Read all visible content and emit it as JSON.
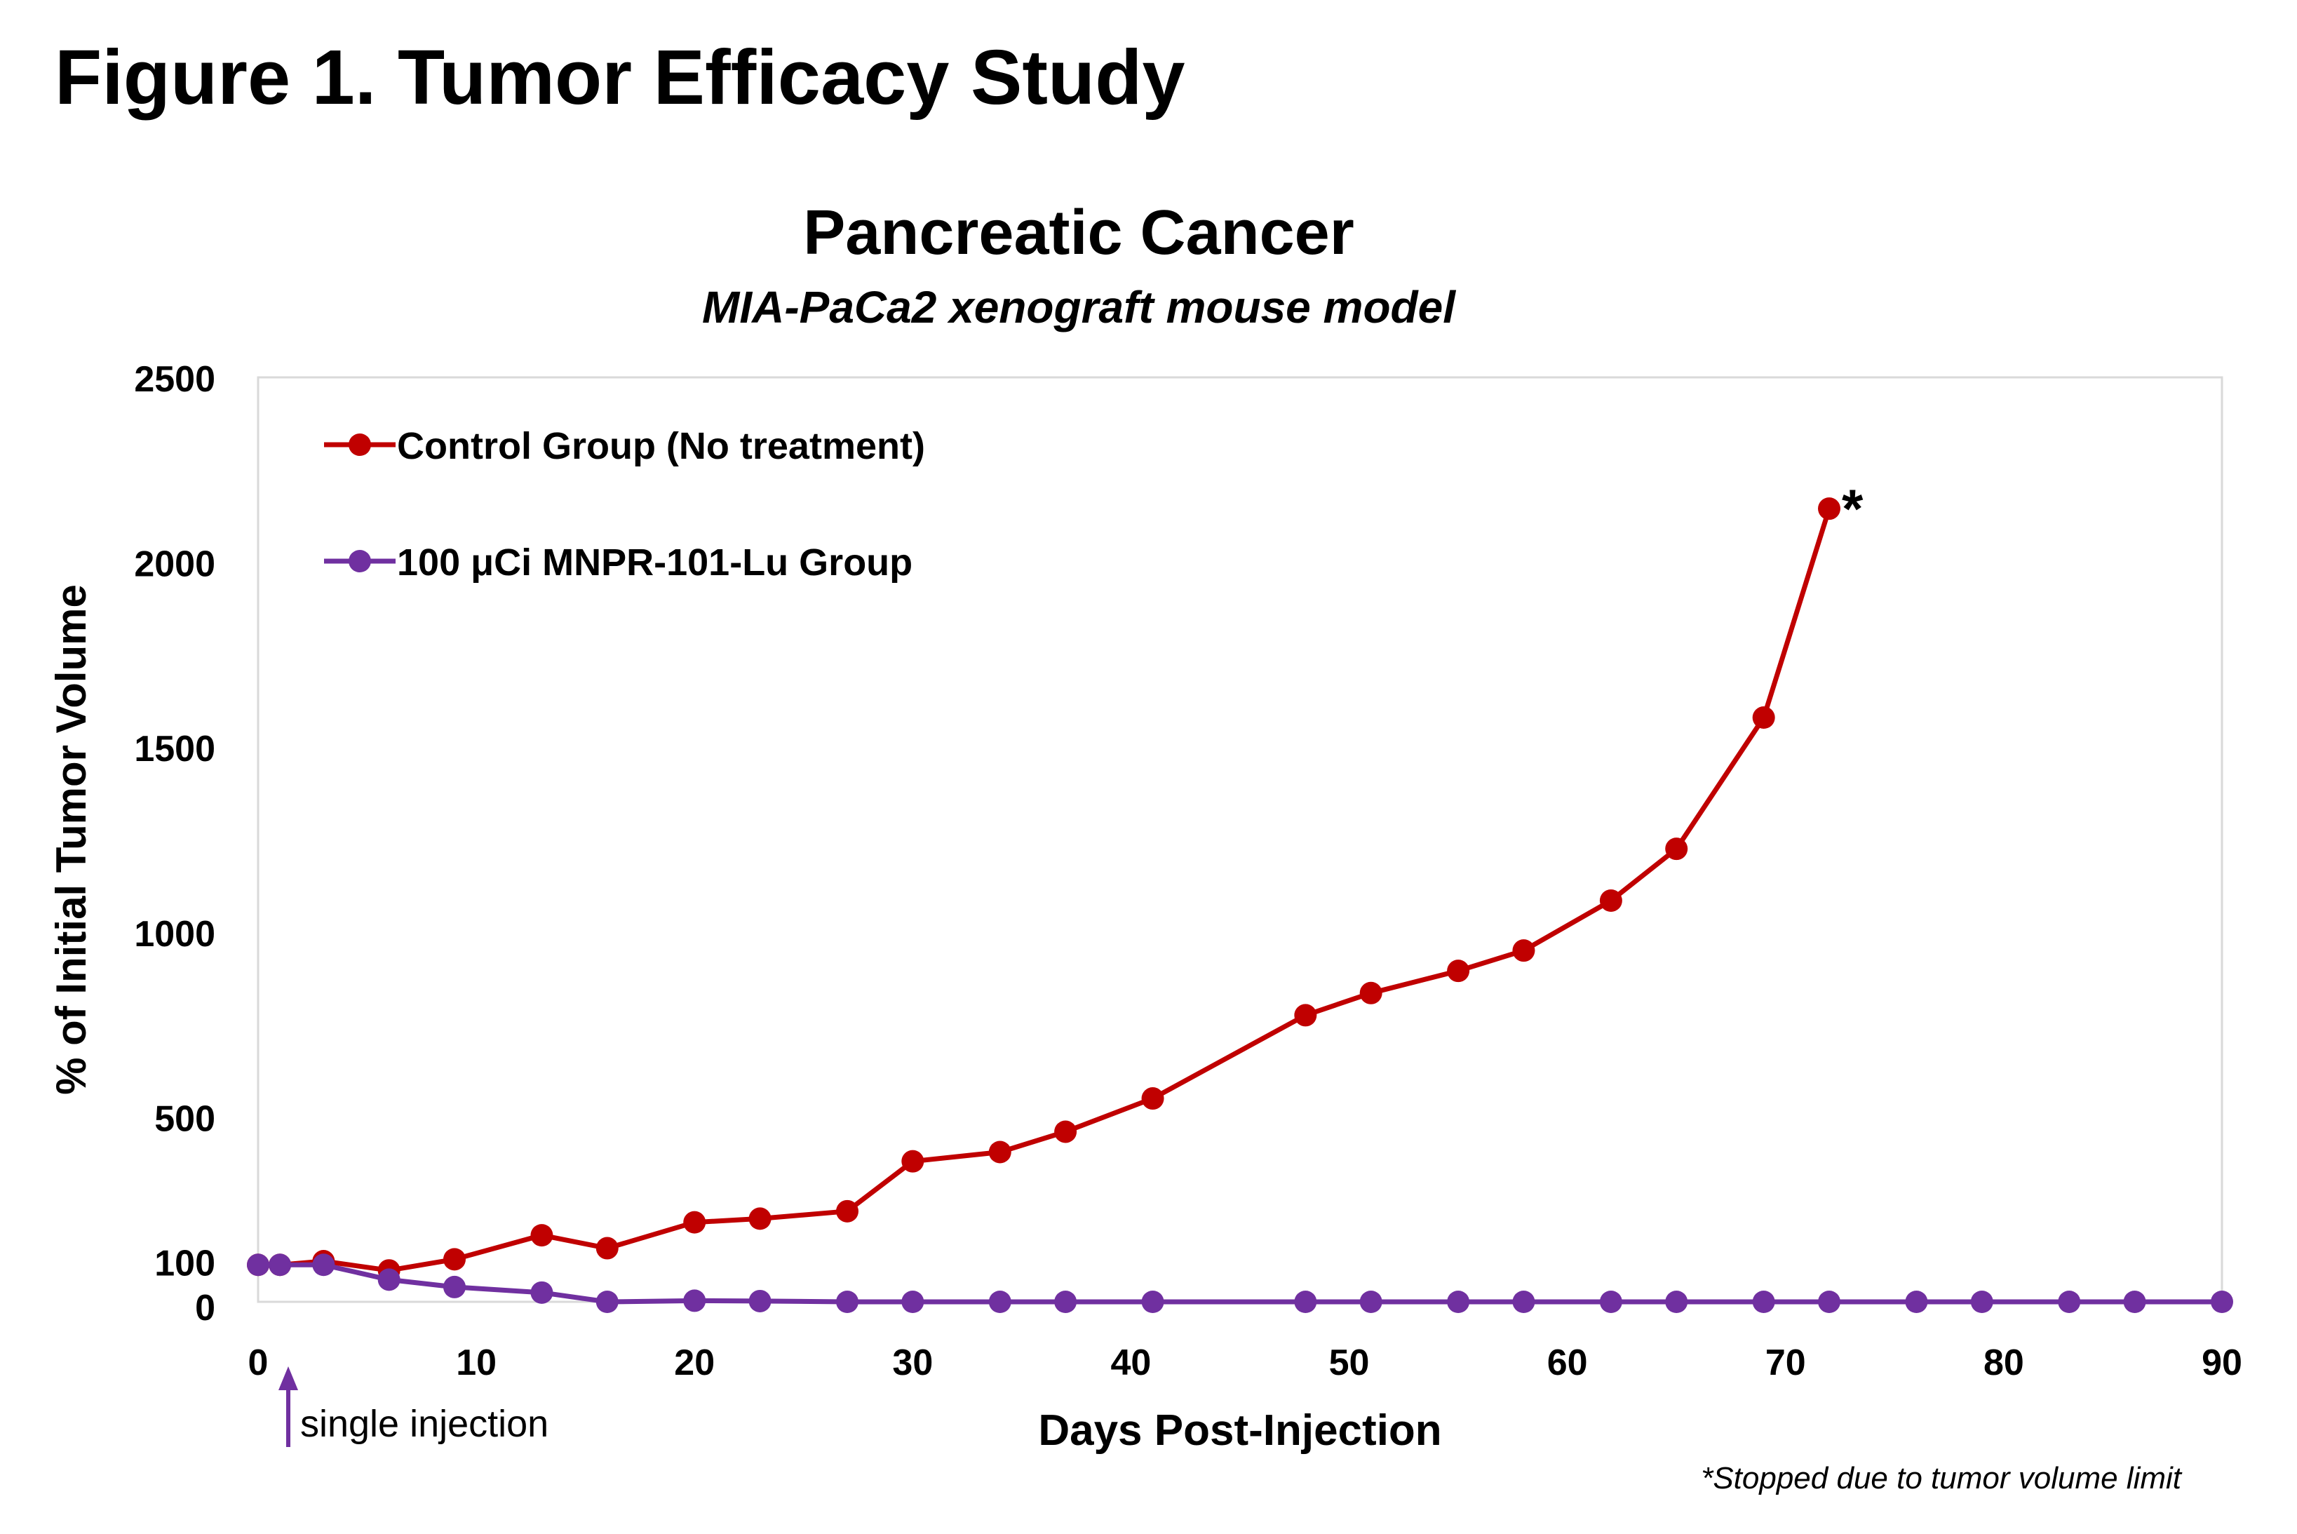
{
  "figure_title": "Figure 1. Tumor Efficacy Study",
  "chart_data": {
    "type": "line",
    "title": "Pancreatic Cancer",
    "subtitle": "MIA-PaCa2 xenograft mouse model",
    "xlabel": "Days Post-Injection",
    "ylabel": "% of Initial Tumor Volume",
    "xlim": [
      0,
      90
    ],
    "ylim": [
      0,
      2500
    ],
    "x_ticks": [
      0,
      10,
      20,
      30,
      40,
      50,
      60,
      70,
      80,
      90
    ],
    "y_ticks": [
      0,
      100,
      500,
      1000,
      1500,
      2000,
      2500
    ],
    "grid": false,
    "legend_position": "top-left",
    "series": [
      {
        "name": "Control Group (No treatment)",
        "color": "#C00000",
        "x": [
          0,
          1,
          3,
          6,
          9,
          13,
          16,
          20,
          23,
          27,
          30,
          34,
          37,
          41,
          48,
          51,
          55,
          58,
          62,
          65,
          69,
          72
        ],
        "values": [
          100,
          100,
          110,
          85,
          115,
          180,
          145,
          215,
          225,
          245,
          380,
          405,
          460,
          550,
          775,
          835,
          895,
          950,
          1085,
          1225,
          1580,
          2145
        ]
      },
      {
        "name": "100 μCi MNPR-101-Lu Group",
        "color": "#7030A0",
        "x": [
          0,
          1,
          3,
          6,
          9,
          13,
          16,
          20,
          23,
          27,
          30,
          34,
          37,
          41,
          48,
          51,
          55,
          58,
          62,
          65,
          69,
          72,
          76,
          79,
          83,
          86,
          90
        ],
        "values": [
          100,
          100,
          100,
          60,
          40,
          25,
          0,
          3,
          2,
          0,
          0,
          0,
          0,
          0,
          0,
          0,
          0,
          0,
          0,
          0,
          0,
          0,
          0,
          0,
          0,
          0,
          0
        ]
      }
    ],
    "annotations": {
      "end_marker": "*",
      "injection_note": "single injection",
      "footnote": "*Stopped due to tumor volume limit"
    }
  }
}
